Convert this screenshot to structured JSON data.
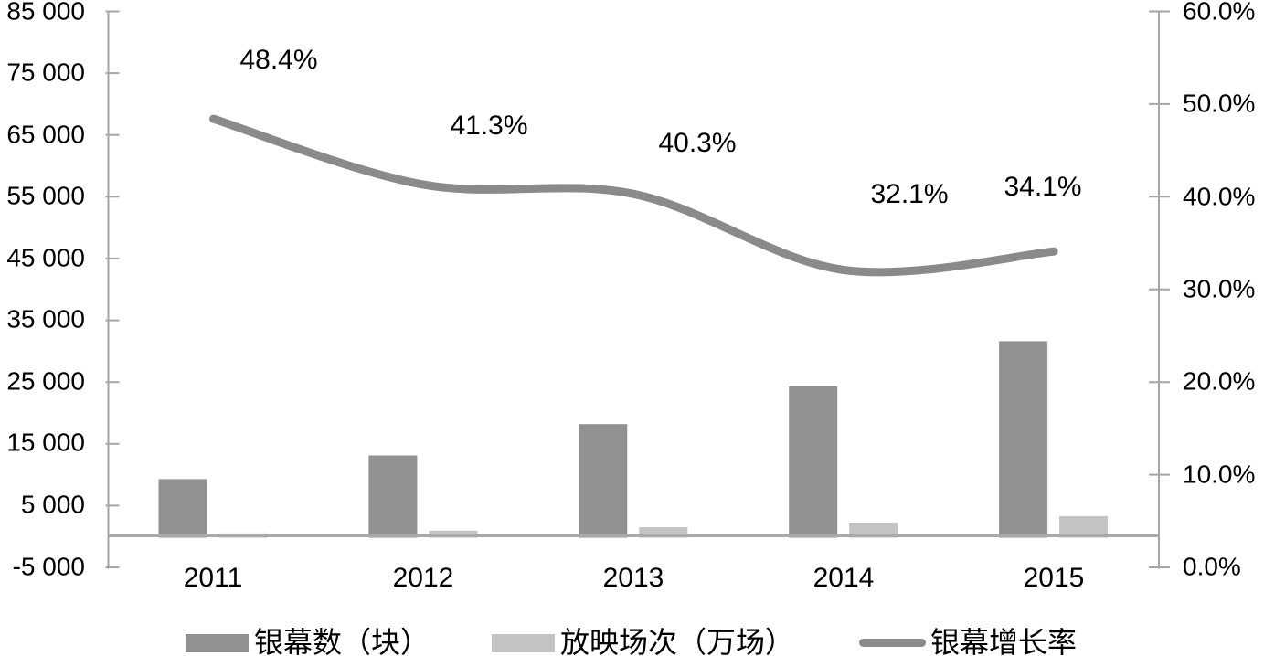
{
  "chart_data": {
    "type": "combo-bar-line",
    "categories": [
      "2011",
      "2012",
      "2013",
      "2014",
      "2015"
    ],
    "series": [
      {
        "name": "银幕数（块）",
        "type": "bar",
        "axis": "left",
        "color": "#919191",
        "values": [
          9286,
          13118,
          18195,
          24317,
          31627
        ]
      },
      {
        "name": "放映场次（万场）",
        "type": "bar",
        "axis": "left",
        "color": "#C3C3C3",
        "values": [
          500,
          950,
          1500,
          2250,
          3300
        ]
      },
      {
        "name": "银幕增长率",
        "type": "line",
        "axis": "right",
        "color": "#8A8A8A",
        "values": [
          48.4,
          41.3,
          40.3,
          32.1,
          34.1
        ],
        "labels": [
          "48.4%",
          "41.3%",
          "40.3%",
          "32.1%",
          "34.1%"
        ]
      }
    ],
    "left_axis": {
      "min": -5000,
      "max": 85000,
      "step": 10000,
      "ticks": [
        "85 000",
        "75 000",
        "65 000",
        "55 000",
        "45 000",
        "35 000",
        "25 000",
        "15 000",
        "5 000",
        "-5 000"
      ]
    },
    "right_axis": {
      "min": 0,
      "max": 60,
      "step": 10,
      "ticks": [
        "60.0%",
        "50.0%",
        "40.0%",
        "30.0%",
        "20.0%",
        "10.0%",
        "0.0%"
      ]
    },
    "grid": false,
    "legend_position": "bottom",
    "colors": {
      "axis": "#A6A6A6",
      "baseline": "#A9A9A9",
      "text": "#000000",
      "background": "#FFFFFF"
    }
  }
}
